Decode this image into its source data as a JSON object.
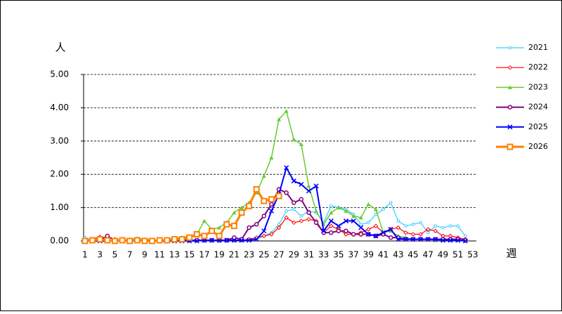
{
  "chart_data": {
    "type": "line",
    "y_label": "人",
    "x_label": "週",
    "categories": [
      "1",
      null,
      "3",
      null,
      "5",
      null,
      "7",
      null,
      "9",
      null,
      "11",
      null,
      "13",
      null,
      "15",
      null,
      "17",
      null,
      "19",
      null,
      "21",
      null,
      "23",
      null,
      "25",
      null,
      "27",
      null,
      "29",
      null,
      "31",
      null,
      "33",
      null,
      "35",
      null,
      "37",
      null,
      "39",
      null,
      "41",
      null,
      "43",
      null,
      "45",
      null,
      "47",
      null,
      "49",
      null,
      "51",
      null,
      "53"
    ],
    "ylim": [
      0,
      5
    ],
    "yticks": [
      {
        "value": 0,
        "label": "0.00"
      },
      {
        "value": 1,
        "label": "1.00"
      },
      {
        "value": 2,
        "label": "2.00"
      },
      {
        "value": 3,
        "label": "3.00"
      },
      {
        "value": 4,
        "label": "4.00"
      },
      {
        "value": 5,
        "label": "5.00"
      }
    ],
    "grid": true,
    "series": [
      {
        "name": "2021",
        "color": "#33ccff",
        "marker": "dot",
        "width": 1.2,
        "values": [
          0.1,
          0.02,
          0.02,
          0.02,
          0.02,
          0.02,
          0.02,
          0.02,
          0.02,
          0.02,
          0.02,
          0.02,
          0.02,
          0.02,
          0.02,
          0.02,
          0.02,
          0.02,
          0.02,
          0.02,
          0.02,
          0.02,
          0.02,
          0.05,
          0.15,
          0.25,
          0.5,
          0.9,
          0.95,
          0.75,
          0.9,
          0.85,
          0.55,
          1.05,
          1.0,
          0.95,
          0.8,
          0.5,
          0.55,
          0.8,
          0.95,
          1.15,
          0.6,
          0.45,
          0.5,
          0.55,
          0.25,
          0.45,
          0.4,
          0.45,
          0.45,
          0.15,
          null
        ]
      },
      {
        "name": "2022",
        "color": "#ff0000",
        "marker": "diamond",
        "width": 1.2,
        "values": [
          0.0,
          0.05,
          0.12,
          0.1,
          0.05,
          0.02,
          0.02,
          0.02,
          0.02,
          0.02,
          0.02,
          0.02,
          0.02,
          0.02,
          0.02,
          0.02,
          0.02,
          0.02,
          0.02,
          0.02,
          0.02,
          0.02,
          0.05,
          0.1,
          0.15,
          0.2,
          0.4,
          0.7,
          0.55,
          0.6,
          0.65,
          0.6,
          0.25,
          0.45,
          0.35,
          0.2,
          0.2,
          0.25,
          0.35,
          0.45,
          0.25,
          0.35,
          0.4,
          0.25,
          0.2,
          0.2,
          0.35,
          0.3,
          0.15,
          0.15,
          0.1,
          0.05,
          null
        ]
      },
      {
        "name": "2023",
        "color": "#66cc33",
        "marker": "triangle",
        "width": 1.5,
        "values": [
          0.0,
          0.0,
          0.02,
          0.02,
          0.02,
          0.02,
          0.05,
          0.08,
          0.05,
          0.02,
          0.02,
          0.05,
          0.08,
          0.1,
          0.15,
          0.2,
          0.6,
          0.35,
          0.4,
          0.55,
          0.85,
          1.0,
          1.15,
          1.45,
          1.95,
          2.5,
          3.65,
          3.9,
          3.05,
          2.9,
          1.65,
          0.9,
          0.5,
          0.85,
          1.0,
          0.9,
          0.75,
          0.7,
          1.1,
          0.95,
          0.25,
          0.3,
          0.15,
          0.1,
          0.05,
          0.05,
          0.05,
          0.02,
          0.02,
          0.02,
          0.02,
          0.0,
          null
        ]
      },
      {
        "name": "2024",
        "color": "#800080",
        "marker": "circle",
        "width": 2,
        "values": [
          0.0,
          0.0,
          0.02,
          0.15,
          0.02,
          0.02,
          0.02,
          0.02,
          0.02,
          0.02,
          0.02,
          0.02,
          0.02,
          0.02,
          0.02,
          0.02,
          0.02,
          0.02,
          0.02,
          0.02,
          0.1,
          0.05,
          0.4,
          0.5,
          0.75,
          1.1,
          1.55,
          1.45,
          1.15,
          1.25,
          0.85,
          0.55,
          0.25,
          0.25,
          0.3,
          0.3,
          0.2,
          0.2,
          0.2,
          0.15,
          0.2,
          0.1,
          0.1,
          0.05,
          0.05,
          0.05,
          0.05,
          0.05,
          0.05,
          0.05,
          0.05,
          0.02,
          null
        ]
      },
      {
        "name": "2025",
        "color": "#0000ff",
        "marker": "x",
        "width": 2,
        "values": [
          0.0,
          0.0,
          0.0,
          0.0,
          0.0,
          0.0,
          0.0,
          0.0,
          0.0,
          0.0,
          0.0,
          0.0,
          0.0,
          0.0,
          0.0,
          0.0,
          0.02,
          0.02,
          0.02,
          0.02,
          0.02,
          0.02,
          0.02,
          0.05,
          0.3,
          0.9,
          1.4,
          2.2,
          1.8,
          1.7,
          1.5,
          1.65,
          0.3,
          0.6,
          0.45,
          0.6,
          0.6,
          0.4,
          0.2,
          0.15,
          0.25,
          0.35,
          0.05,
          0.05,
          0.05,
          0.05,
          0.05,
          0.05,
          0.02,
          0.02,
          0.02,
          0.0,
          null
        ]
      },
      {
        "name": "2026",
        "color": "#ff8000",
        "marker": "square",
        "width": 3,
        "values": [
          0.0,
          0.02,
          0.05,
          0.02,
          0.0,
          0.02,
          0.0,
          0.02,
          0.0,
          0.0,
          0.02,
          0.02,
          0.05,
          0.05,
          0.1,
          0.2,
          0.15,
          0.3,
          0.15,
          0.5,
          0.45,
          0.85,
          1.05,
          1.55,
          1.2,
          1.25,
          1.35,
          null,
          null,
          null,
          null,
          null,
          null,
          null,
          null,
          null,
          null,
          null,
          null,
          null,
          null,
          null,
          null,
          null,
          null,
          null,
          null,
          null,
          null,
          null,
          null,
          null,
          null
        ]
      }
    ]
  }
}
